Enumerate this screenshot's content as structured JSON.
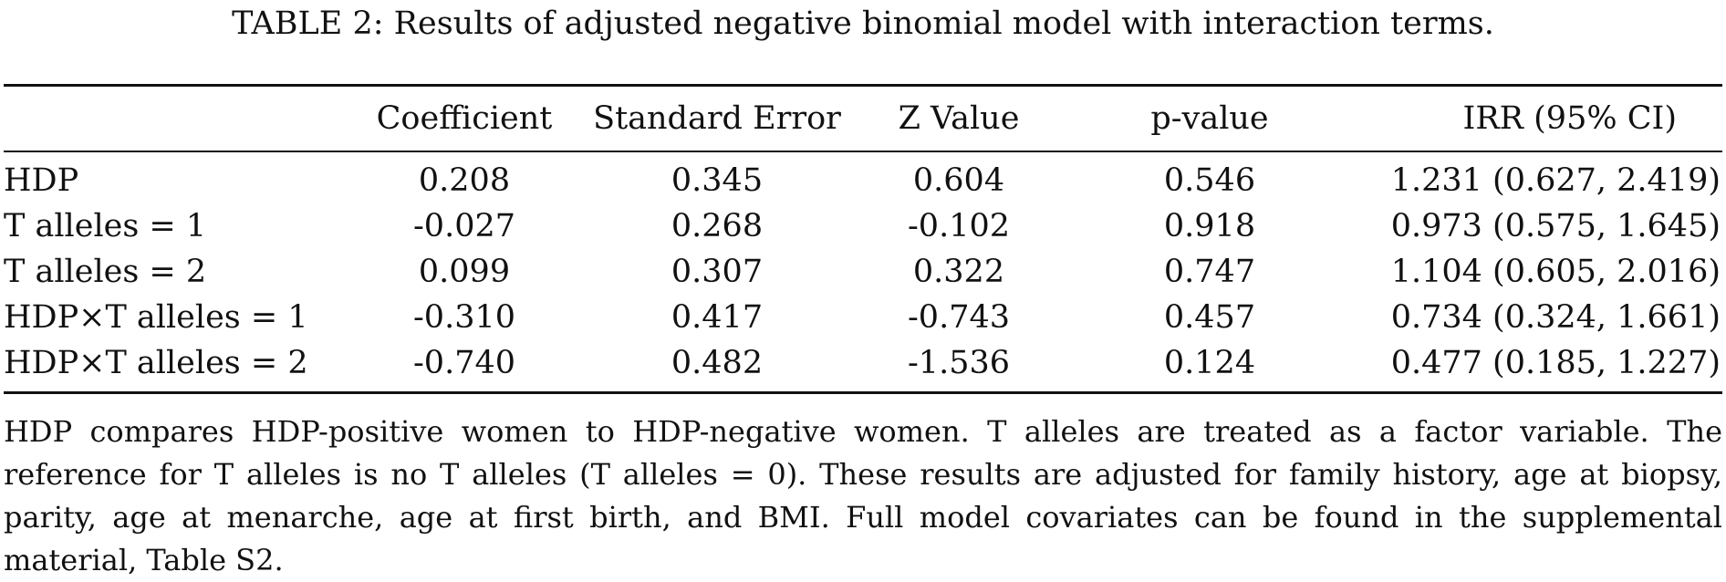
{
  "caption": "TABLE 2: Results of adjusted negative binomial model with interaction terms.",
  "table": {
    "headers": [
      "",
      "Coefficient",
      "Standard Error",
      "Z Value",
      "p-value",
      "IRR (95% CI)"
    ],
    "rows": [
      {
        "label": "HDP",
        "coefficient": "0.208",
        "se": "0.345",
        "z": "0.604",
        "p": "0.546",
        "irr": "1.231 (0.627, 2.419)"
      },
      {
        "label": "T alleles = 1",
        "coefficient": "-0.027",
        "se": "0.268",
        "z": "-0.102",
        "p": "0.918",
        "irr": "0.973 (0.575, 1.645)"
      },
      {
        "label": "T alleles = 2",
        "coefficient": "0.099",
        "se": "0.307",
        "z": "0.322",
        "p": "0.747",
        "irr": "1.104 (0.605, 2.016)"
      },
      {
        "label": "HDP×T alleles = 1",
        "coefficient": "-0.310",
        "se": "0.417",
        "z": "-0.743",
        "p": "0.457",
        "irr": "0.734 (0.324, 1.661)"
      },
      {
        "label": "HDP×T alleles = 2",
        "coefficient": "-0.740",
        "se": "0.482",
        "z": "-1.536",
        "p": "0.124",
        "irr": "0.477 (0.185, 1.227)"
      }
    ]
  },
  "footnote": "HDP compares HDP-positive women to HDP-negative women. T alleles are treated as a factor variable. The reference for T alleles is no T alleles (T alleles = 0). These results are adjusted for family history, age at biopsy, parity, age at menarche, age at first birth, and BMI. Full model covariates can be found in the supplemental material, Table S2."
}
